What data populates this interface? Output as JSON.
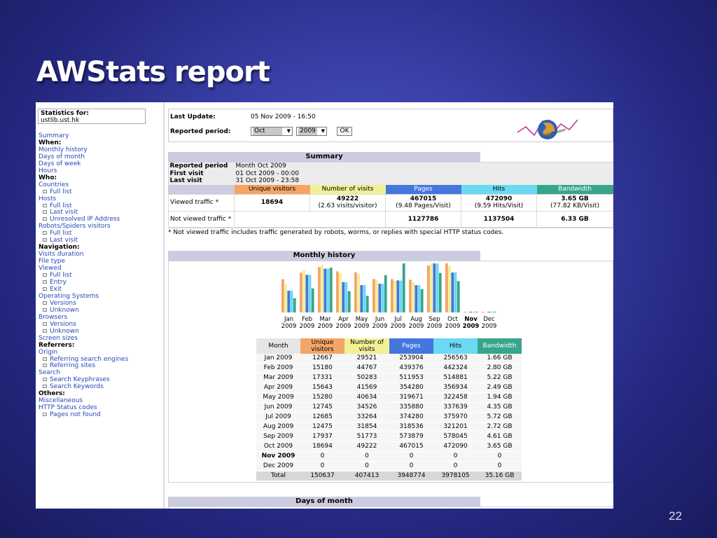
{
  "slide": {
    "title": "AWStats report",
    "page_number": "22"
  },
  "menu": {
    "stats_for_label": "Statistics for:",
    "site": "ustlib.ust.hk",
    "items": [
      {
        "label": "Summary",
        "type": "link"
      },
      {
        "label": "When:",
        "type": "head"
      },
      {
        "label": "Monthly history",
        "type": "link"
      },
      {
        "label": "Days of month",
        "type": "link"
      },
      {
        "label": "Days of week",
        "type": "link"
      },
      {
        "label": "Hours",
        "type": "link"
      },
      {
        "label": "Who:",
        "type": "head"
      },
      {
        "label": "Countries",
        "type": "link"
      },
      {
        "label": "Full list",
        "type": "sub"
      },
      {
        "label": "Hosts",
        "type": "link"
      },
      {
        "label": "Full list",
        "type": "sub"
      },
      {
        "label": "Last visit",
        "type": "sub"
      },
      {
        "label": "Unresolved IP Address",
        "type": "sub"
      },
      {
        "label": "Robots/Spiders visitors",
        "type": "link"
      },
      {
        "label": "Full list",
        "type": "sub"
      },
      {
        "label": "Last visit",
        "type": "sub"
      },
      {
        "label": "Navigation:",
        "type": "head"
      },
      {
        "label": "Visits duration",
        "type": "link"
      },
      {
        "label": "File type",
        "type": "link"
      },
      {
        "label": "Viewed",
        "type": "link"
      },
      {
        "label": "Full list",
        "type": "sub"
      },
      {
        "label": "Entry",
        "type": "sub"
      },
      {
        "label": "Exit",
        "type": "sub"
      },
      {
        "label": "Operating Systems",
        "type": "link"
      },
      {
        "label": "Versions",
        "type": "sub"
      },
      {
        "label": "Unknown",
        "type": "sub"
      },
      {
        "label": "Browsers",
        "type": "link"
      },
      {
        "label": "Versions",
        "type": "sub"
      },
      {
        "label": "Unknown",
        "type": "sub"
      },
      {
        "label": "Screen sizes",
        "type": "link"
      },
      {
        "label": "Referrers:",
        "type": "head"
      },
      {
        "label": "Origin",
        "type": "link"
      },
      {
        "label": "Referring search engines",
        "type": "sub"
      },
      {
        "label": "Referring sites",
        "type": "sub"
      },
      {
        "label": "Search",
        "type": "link"
      },
      {
        "label": "Search Keyphrases",
        "type": "sub"
      },
      {
        "label": "Search Keywords",
        "type": "sub"
      },
      {
        "label": "Others:",
        "type": "head"
      },
      {
        "label": "Miscellaneous",
        "type": "link"
      },
      {
        "label": "HTTP Status codes",
        "type": "link"
      },
      {
        "label": "Pages not found",
        "type": "sub"
      }
    ]
  },
  "update": {
    "last_update_label": "Last Update:",
    "last_update_value": "05 Nov 2009 - 16:50",
    "reported_period_label": "Reported period:",
    "month_select": "Oct",
    "year_select": "2009",
    "ok_label": "OK"
  },
  "summary": {
    "title": "Summary",
    "reported_period_label": "Reported period",
    "reported_period_value": "Month Oct 2009",
    "first_visit_label": "First visit",
    "first_visit_value": "01 Oct 2009 - 00:00",
    "last_visit_label": "Last visit",
    "last_visit_value": "31 Oct 2009 - 23:58",
    "headers": [
      "Unique visitors",
      "Number of visits",
      "Pages",
      "Hits",
      "Bandwidth"
    ],
    "viewed_label": "Viewed traffic *",
    "viewed": {
      "unique": "18694",
      "visits": "49222",
      "visits_sub": "(2.63 visits/visitor)",
      "pages": "467015",
      "pages_sub": "(9.48 Pages/Visit)",
      "hits": "472090",
      "hits_sub": "(9.59 Hits/Visit)",
      "bandwidth": "3.65 GB",
      "bandwidth_sub": "(77.82 KB/Visit)"
    },
    "not_viewed_label": "Not viewed traffic *",
    "not_viewed": {
      "pages": "1127786",
      "hits": "1137504",
      "bandwidth": "6.33 GB"
    },
    "note": "* Not viewed traffic includes traffic generated by robots, worms, or replies with special HTTP status codes."
  },
  "monthly": {
    "title": "Monthly history",
    "headers": [
      "Month",
      "Unique visitors",
      "Number of visits",
      "Pages",
      "Hits",
      "Bandwidth"
    ],
    "rows": [
      [
        "Jan 2009",
        "12667",
        "29521",
        "253904",
        "256563",
        "1.66 GB"
      ],
      [
        "Feb 2009",
        "15180",
        "44767",
        "439376",
        "442324",
        "2.80 GB"
      ],
      [
        "Mar 2009",
        "17331",
        "50283",
        "511953",
        "514881",
        "5.22 GB"
      ],
      [
        "Apr 2009",
        "15643",
        "41569",
        "354280",
        "356934",
        "2.49 GB"
      ],
      [
        "May 2009",
        "15280",
        "40634",
        "319671",
        "322458",
        "1.94 GB"
      ],
      [
        "Jun 2009",
        "12745",
        "34526",
        "335880",
        "337639",
        "4.35 GB"
      ],
      [
        "Jul 2009",
        "12685",
        "33264",
        "374280",
        "375970",
        "5.72 GB"
      ],
      [
        "Aug 2009",
        "12475",
        "31854",
        "318536",
        "321201",
        "2.72 GB"
      ],
      [
        "Sep 2009",
        "17937",
        "51773",
        "573879",
        "578045",
        "4.61 GB"
      ],
      [
        "Oct 2009",
        "18694",
        "49222",
        "467015",
        "472090",
        "3.65 GB"
      ],
      [
        "Nov 2009",
        "0",
        "0",
        "0",
        "0",
        "0"
      ],
      [
        "Dec 2009",
        "0",
        "0",
        "0",
        "0",
        "0"
      ]
    ],
    "total": [
      "Total",
      "150637",
      "407413",
      "3948774",
      "3978105",
      "35.16 GB"
    ],
    "current_month": "Nov 2009"
  },
  "chart_data": {
    "type": "bar",
    "categories": [
      "Jan 2009",
      "Feb 2009",
      "Mar 2009",
      "Apr 2009",
      "May 2009",
      "Jun 2009",
      "Jul 2009",
      "Aug 2009",
      "Sep 2009",
      "Oct 2009",
      "Nov 2009",
      "Dec 2009"
    ],
    "month_labels": [
      "Jan",
      "Feb",
      "Mar",
      "Apr",
      "May",
      "Jun",
      "Jul",
      "Aug",
      "Sep",
      "Oct",
      "Nov",
      "Dec"
    ],
    "year_labels": [
      "2009",
      "2009",
      "2009",
      "2009",
      "2009",
      "2009",
      "2009",
      "2009",
      "2009",
      "2009",
      "2009",
      "2009"
    ],
    "bold_index": 10,
    "series": [
      {
        "name": "Unique visitors",
        "color": "#f4a566",
        "values": [
          12667,
          15180,
          17331,
          15643,
          15280,
          12745,
          12685,
          12475,
          17937,
          18694,
          0,
          0
        ]
      },
      {
        "name": "Number of visits",
        "color": "#f1f096",
        "values": [
          29521,
          44767,
          50283,
          41569,
          40634,
          34526,
          33264,
          31854,
          51773,
          49222,
          0,
          0
        ]
      },
      {
        "name": "Pages",
        "color": "#4476dd",
        "values": [
          253904,
          439376,
          511953,
          354280,
          319671,
          335880,
          374280,
          318536,
          573879,
          467015,
          0,
          0
        ]
      },
      {
        "name": "Hits",
        "color": "#6ad9f2",
        "values": [
          256563,
          442324,
          514881,
          356934,
          322458,
          337639,
          375970,
          321201,
          578045,
          472090,
          0,
          0
        ]
      },
      {
        "name": "Bandwidth",
        "color": "#37a58d",
        "values": [
          1.66,
          2.8,
          5.22,
          2.49,
          1.94,
          4.35,
          5.72,
          2.72,
          4.61,
          3.65,
          0,
          0
        ]
      }
    ]
  },
  "next_section": {
    "title": "Days of month"
  }
}
